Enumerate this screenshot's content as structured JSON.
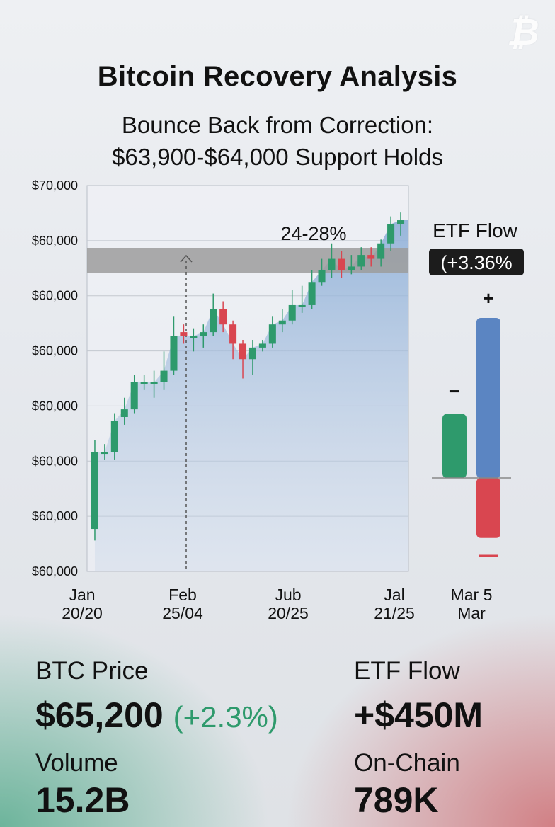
{
  "header": {
    "title": "Bitcoin Recovery Analysis",
    "subtitle_line1": "Bounce Back from Correction:",
    "subtitle_line2": "$63,900-$64,000 Support Holds"
  },
  "chart_data": {
    "type": "candlestick",
    "y_tick_labels": [
      "$70,000",
      "$60,000",
      "$60,000",
      "$60,000",
      "$60,000",
      "$60,000",
      "$60,000",
      "$60,000"
    ],
    "x_tick_labels": [
      {
        "line1": "Jan",
        "line2": "20/20"
      },
      {
        "line1": "Feb",
        "line2": "25/04"
      },
      {
        "line1": "Jub",
        "line2": "20/25"
      },
      {
        "line1": "Jal",
        "line2": "21/25"
      }
    ],
    "candles": [
      {
        "open": 0.11,
        "close": 0.31,
        "high": 0.34,
        "low": 0.08
      },
      {
        "open": 0.31,
        "close": 0.31,
        "high": 0.33,
        "low": 0.29
      },
      {
        "open": 0.31,
        "close": 0.39,
        "high": 0.41,
        "low": 0.29
      },
      {
        "open": 0.4,
        "close": 0.42,
        "high": 0.45,
        "low": 0.38
      },
      {
        "open": 0.42,
        "close": 0.49,
        "high": 0.51,
        "low": 0.41
      },
      {
        "open": 0.49,
        "close": 0.49,
        "high": 0.51,
        "low": 0.47
      },
      {
        "open": 0.49,
        "close": 0.49,
        "high": 0.52,
        "low": 0.45
      },
      {
        "open": 0.49,
        "close": 0.52,
        "high": 0.57,
        "low": 0.47
      },
      {
        "open": 0.52,
        "close": 0.61,
        "high": 0.66,
        "low": 0.51
      },
      {
        "open": 0.62,
        "close": 0.61,
        "high": 0.64,
        "low": 0.59
      },
      {
        "open": 0.61,
        "close": 0.61,
        "high": 0.63,
        "low": 0.57
      },
      {
        "open": 0.61,
        "close": 0.62,
        "high": 0.64,
        "low": 0.58
      },
      {
        "open": 0.62,
        "close": 0.68,
        "high": 0.72,
        "low": 0.61
      },
      {
        "open": 0.68,
        "close": 0.64,
        "high": 0.7,
        "low": 0.62
      },
      {
        "open": 0.64,
        "close": 0.59,
        "high": 0.65,
        "low": 0.55
      },
      {
        "open": 0.59,
        "close": 0.55,
        "high": 0.6,
        "low": 0.5
      },
      {
        "open": 0.55,
        "close": 0.58,
        "high": 0.6,
        "low": 0.51
      },
      {
        "open": 0.58,
        "close": 0.59,
        "high": 0.6,
        "low": 0.57
      },
      {
        "open": 0.59,
        "close": 0.64,
        "high": 0.66,
        "low": 0.58
      },
      {
        "open": 0.64,
        "close": 0.65,
        "high": 0.68,
        "low": 0.62
      },
      {
        "open": 0.65,
        "close": 0.69,
        "high": 0.73,
        "low": 0.64
      },
      {
        "open": 0.69,
        "close": 0.69,
        "high": 0.74,
        "low": 0.67
      },
      {
        "open": 0.69,
        "close": 0.75,
        "high": 0.78,
        "low": 0.68
      },
      {
        "open": 0.75,
        "close": 0.78,
        "high": 0.81,
        "low": 0.74
      },
      {
        "open": 0.78,
        "close": 0.81,
        "high": 0.85,
        "low": 0.76
      },
      {
        "open": 0.81,
        "close": 0.78,
        "high": 0.83,
        "low": 0.76
      },
      {
        "open": 0.78,
        "close": 0.79,
        "high": 0.82,
        "low": 0.77
      },
      {
        "open": 0.79,
        "close": 0.82,
        "high": 0.84,
        "low": 0.78
      },
      {
        "open": 0.82,
        "close": 0.81,
        "high": 0.84,
        "low": 0.79
      },
      {
        "open": 0.81,
        "close": 0.85,
        "high": 0.86,
        "low": 0.79
      },
      {
        "open": 0.85,
        "close": 0.9,
        "high": 0.92,
        "low": 0.83
      },
      {
        "open": 0.9,
        "close": 0.91,
        "high": 0.93,
        "low": 0.87
      }
    ],
    "resistance_band_label": "24-28%",
    "etf_panel": {
      "title": "ETF Flow",
      "badge": "(+3.36%",
      "plus_sign": "+",
      "minus_sign": "−",
      "bars": [
        {
          "name": "outflow-green",
          "value": 0.8,
          "color": "#2e9a6c"
        },
        {
          "name": "inflow-blue",
          "value": 2.0,
          "color": "#5b85c2"
        },
        {
          "name": "outflow-red",
          "value": -0.75,
          "color": "#d94650"
        }
      ],
      "x_label_line1": "Mar 5",
      "x_label_line2": "Mar"
    },
    "colors": {
      "up": "#2e9a6c",
      "down": "#d94650",
      "area": "#9bb6d8",
      "band": "#9a9a9a"
    },
    "grid": true
  },
  "metrics": {
    "btc": {
      "label": "BTC Price",
      "value": "$65,200",
      "change": "(+2.3%)"
    },
    "etf": {
      "label": "ETF Flow",
      "value": "+$450M"
    },
    "volume": {
      "label": "Volume",
      "value": "15.2B"
    },
    "onchain": {
      "label": "On-Chain",
      "value": "789K"
    }
  }
}
